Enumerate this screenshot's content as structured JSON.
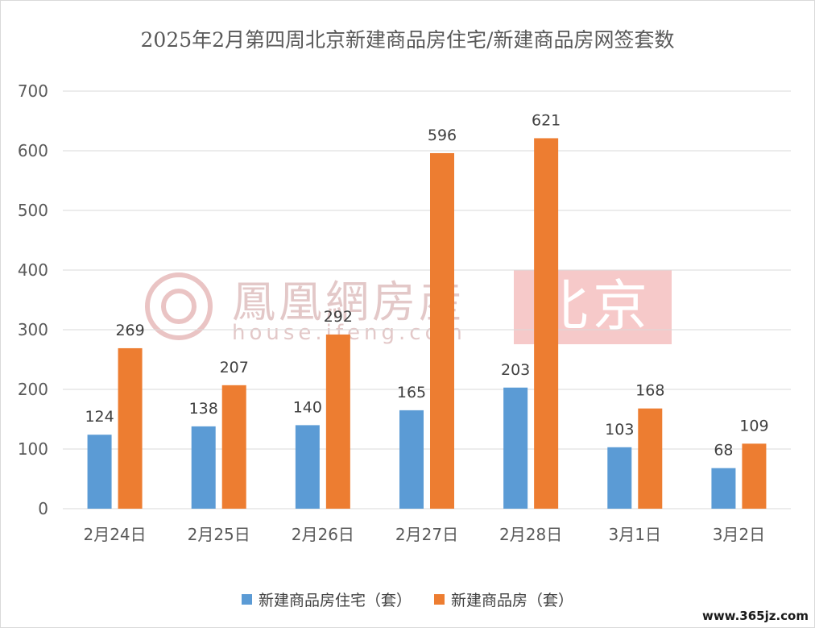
{
  "chart_data": {
    "type": "bar",
    "title": "2025年2月第四周北京新建商品房住宅/新建商品房网签套数",
    "categories": [
      "2月24日",
      "2月25日",
      "2月26日",
      "2月27日",
      "2月28日",
      "3月1日",
      "3月2日"
    ],
    "series": [
      {
        "name": "新建商品房住宅（套）",
        "color": "#5b9bd5",
        "values": [
          124,
          138,
          140,
          165,
          203,
          103,
          68
        ]
      },
      {
        "name": "新建商品房（套）",
        "color": "#ed7d31",
        "values": [
          269,
          207,
          292,
          596,
          621,
          168,
          109
        ]
      }
    ],
    "ylim": [
      0,
      700
    ],
    "yticks": [
      0,
      100,
      200,
      300,
      400,
      500,
      600,
      700
    ],
    "grid": true,
    "legend": "bottom"
  },
  "watermark": {
    "brand": "鳳凰網房産",
    "url": "house.ifeng.com",
    "city": "北京",
    "logo_icon": "ifeng-phoenix-logo-icon"
  },
  "corner_watermark": "www.365jz.com"
}
